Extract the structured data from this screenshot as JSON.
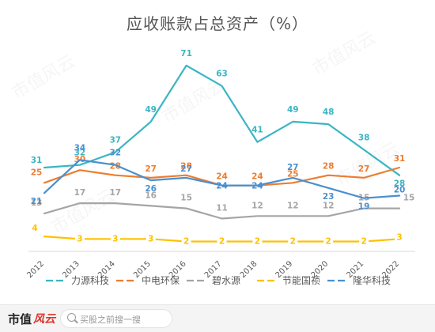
{
  "chart_data": {
    "type": "line",
    "title": "应收账款占总资产（%）",
    "xlabel": "",
    "ylabel": "",
    "categories": [
      "2012",
      "2013",
      "2014",
      "2015",
      "2016",
      "2017",
      "2018",
      "2019",
      "2020",
      "2021",
      "2022"
    ],
    "ylim": [
      0,
      75
    ],
    "grid": false,
    "legend_position": "bottom",
    "series": [
      {
        "name": "力源科技",
        "color": "#3ab5c3",
        "values": [
          31,
          32,
          37,
          49,
          71,
          63,
          41,
          49,
          48,
          38,
          28
        ]
      },
      {
        "name": "中电环保",
        "color": "#ed7d31",
        "values": [
          25,
          30,
          28,
          27,
          28,
          24,
          24,
          25,
          28,
          27,
          31
        ]
      },
      {
        "name": "碧水源",
        "color": "#a5a5a5",
        "values": [
          13,
          17,
          17,
          16,
          15,
          11,
          12,
          12,
          12,
          15,
          15
        ]
      },
      {
        "name": "节能国祯",
        "color": "#ffc000",
        "values": [
          4,
          3,
          3,
          3,
          2,
          2,
          2,
          2,
          2,
          2,
          3
        ]
      },
      {
        "name": "隆华科技",
        "color": "#4a8fcf",
        "values": [
          21,
          34,
          32,
          26,
          27,
          24,
          24,
          27,
          23,
          19,
          20
        ]
      }
    ]
  },
  "watermark_text": "市值风云",
  "footer": {
    "brand": "市值",
    "brand_mark": "风云",
    "search_placeholder": "买股之前搜一搜",
    "search_icon": "search-icon"
  }
}
